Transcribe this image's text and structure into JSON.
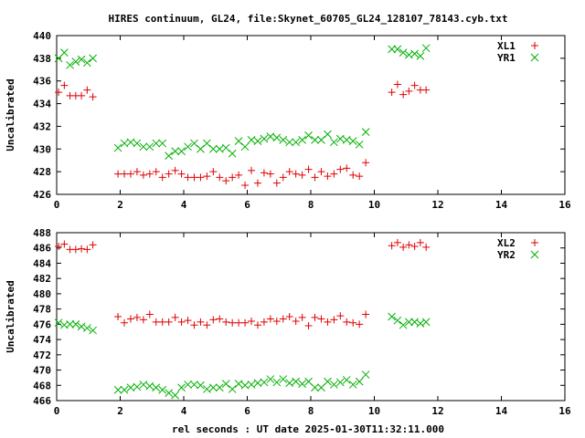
{
  "title": "HIRES continuum, GL24, file:Skynet_60705_GL24_128107_78143.cyb.txt",
  "xlabel": "rel seconds : UT date 2025-01-30T11:32:11.000",
  "colors": {
    "plus": "#e00000",
    "cross": "#00b000",
    "axes": "#000000"
  },
  "chart_data": [
    {
      "type": "scatter",
      "ylabel": "Uncalibrated",
      "xlim": [
        0,
        16
      ],
      "ylim": [
        426,
        440
      ],
      "xticks": [
        "0",
        "2",
        "4",
        "6",
        "8",
        "10",
        "12",
        "14",
        "16"
      ],
      "yticks": [
        "426",
        "428",
        "430",
        "432",
        "434",
        "436",
        "438",
        "440"
      ],
      "legend_position": "top-right",
      "series": [
        {
          "name": "XL1",
          "marker": "plus",
          "points": [
            [
              0.06,
              435.0
            ],
            [
              0.24,
              435.6
            ],
            [
              0.42,
              434.7
            ],
            [
              0.6,
              434.7
            ],
            [
              0.78,
              434.7
            ],
            [
              0.96,
              435.2
            ],
            [
              1.14,
              434.6
            ],
            [
              1.93,
              427.8
            ],
            [
              2.13,
              427.8
            ],
            [
              2.33,
              427.8
            ],
            [
              2.53,
              428.0
            ],
            [
              2.73,
              427.7
            ],
            [
              2.93,
              427.8
            ],
            [
              3.13,
              428.0
            ],
            [
              3.33,
              427.5
            ],
            [
              3.53,
              427.8
            ],
            [
              3.73,
              428.1
            ],
            [
              3.93,
              427.8
            ],
            [
              4.13,
              427.5
            ],
            [
              4.33,
              427.5
            ],
            [
              4.53,
              427.5
            ],
            [
              4.73,
              427.6
            ],
            [
              4.93,
              428.0
            ],
            [
              5.13,
              427.5
            ],
            [
              5.33,
              427.2
            ],
            [
              5.53,
              427.5
            ],
            [
              5.73,
              427.7
            ],
            [
              5.93,
              426.8
            ],
            [
              6.13,
              428.1
            ],
            [
              6.33,
              427.0
            ],
            [
              6.53,
              427.9
            ],
            [
              6.73,
              427.8
            ],
            [
              6.93,
              427.0
            ],
            [
              7.13,
              427.5
            ],
            [
              7.33,
              428.0
            ],
            [
              7.53,
              427.8
            ],
            [
              7.73,
              427.7
            ],
            [
              7.93,
              428.2
            ],
            [
              8.13,
              427.5
            ],
            [
              8.33,
              428.0
            ],
            [
              8.53,
              427.6
            ],
            [
              8.73,
              427.8
            ],
            [
              8.93,
              428.2
            ],
            [
              9.13,
              428.3
            ],
            [
              9.33,
              427.7
            ],
            [
              9.53,
              427.6
            ],
            [
              9.73,
              428.8
            ],
            [
              10.55,
              435.0
            ],
            [
              10.73,
              435.7
            ],
            [
              10.91,
              434.8
            ],
            [
              11.09,
              435.1
            ],
            [
              11.27,
              435.6
            ],
            [
              11.45,
              435.2
            ],
            [
              11.63,
              435.2
            ]
          ]
        },
        {
          "name": "YR1",
          "marker": "cross",
          "points": [
            [
              0.06,
              438.0
            ],
            [
              0.24,
              438.5
            ],
            [
              0.42,
              437.4
            ],
            [
              0.6,
              437.7
            ],
            [
              0.78,
              437.9
            ],
            [
              0.96,
              437.6
            ],
            [
              1.14,
              438.0
            ],
            [
              1.93,
              430.1
            ],
            [
              2.13,
              430.5
            ],
            [
              2.33,
              430.6
            ],
            [
              2.53,
              430.5
            ],
            [
              2.73,
              430.2
            ],
            [
              2.93,
              430.2
            ],
            [
              3.13,
              430.5
            ],
            [
              3.33,
              430.5
            ],
            [
              3.53,
              429.4
            ],
            [
              3.73,
              429.8
            ],
            [
              3.93,
              429.8
            ],
            [
              4.13,
              430.2
            ],
            [
              4.33,
              430.5
            ],
            [
              4.53,
              430.0
            ],
            [
              4.73,
              430.5
            ],
            [
              4.93,
              430.0
            ],
            [
              5.13,
              430.0
            ],
            [
              5.33,
              430.1
            ],
            [
              5.53,
              429.6
            ],
            [
              5.73,
              430.7
            ],
            [
              5.93,
              430.2
            ],
            [
              6.13,
              430.8
            ],
            [
              6.33,
              430.7
            ],
            [
              6.53,
              430.9
            ],
            [
              6.73,
              431.1
            ],
            [
              6.93,
              431.0
            ],
            [
              7.13,
              430.8
            ],
            [
              7.33,
              430.6
            ],
            [
              7.53,
              430.6
            ],
            [
              7.73,
              430.8
            ],
            [
              7.93,
              431.2
            ],
            [
              8.13,
              430.8
            ],
            [
              8.33,
              430.8
            ],
            [
              8.53,
              431.3
            ],
            [
              8.73,
              430.6
            ],
            [
              8.93,
              430.9
            ],
            [
              9.13,
              430.8
            ],
            [
              9.33,
              430.7
            ],
            [
              9.53,
              430.4
            ],
            [
              9.73,
              431.5
            ],
            [
              10.55,
              438.8
            ],
            [
              10.73,
              438.8
            ],
            [
              10.91,
              438.5
            ],
            [
              11.09,
              438.3
            ],
            [
              11.27,
              438.4
            ],
            [
              11.45,
              438.2
            ],
            [
              11.63,
              438.9
            ]
          ]
        }
      ]
    },
    {
      "type": "scatter",
      "ylabel": "Uncalibrated",
      "xlim": [
        0,
        16
      ],
      "ylim": [
        466,
        488
      ],
      "xticks": [
        "0",
        "2",
        "4",
        "6",
        "8",
        "10",
        "12",
        "14",
        "16"
      ],
      "yticks": [
        "466",
        "468",
        "470",
        "472",
        "474",
        "476",
        "478",
        "480",
        "482",
        "484",
        "486",
        "488"
      ],
      "legend_position": "top-right",
      "series": [
        {
          "name": "XL2",
          "marker": "plus",
          "points": [
            [
              0.06,
              486.2
            ],
            [
              0.24,
              486.5
            ],
            [
              0.42,
              485.8
            ],
            [
              0.6,
              485.8
            ],
            [
              0.78,
              485.9
            ],
            [
              0.96,
              485.8
            ],
            [
              1.14,
              486.4
            ],
            [
              1.93,
              477.0
            ],
            [
              2.13,
              476.2
            ],
            [
              2.33,
              476.7
            ],
            [
              2.53,
              476.9
            ],
            [
              2.73,
              476.6
            ],
            [
              2.93,
              477.3
            ],
            [
              3.13,
              476.3
            ],
            [
              3.33,
              476.3
            ],
            [
              3.53,
              476.3
            ],
            [
              3.73,
              476.9
            ],
            [
              3.93,
              476.3
            ],
            [
              4.13,
              476.5
            ],
            [
              4.33,
              475.9
            ],
            [
              4.53,
              476.3
            ],
            [
              4.73,
              475.9
            ],
            [
              4.93,
              476.6
            ],
            [
              5.13,
              476.7
            ],
            [
              5.33,
              476.3
            ],
            [
              5.53,
              476.2
            ],
            [
              5.73,
              476.2
            ],
            [
              5.93,
              476.2
            ],
            [
              6.13,
              476.4
            ],
            [
              6.33,
              475.9
            ],
            [
              6.53,
              476.3
            ],
            [
              6.73,
              476.7
            ],
            [
              6.93,
              476.4
            ],
            [
              7.13,
              476.7
            ],
            [
              7.33,
              477.0
            ],
            [
              7.53,
              476.4
            ],
            [
              7.73,
              476.9
            ],
            [
              7.93,
              475.8
            ],
            [
              8.13,
              476.9
            ],
            [
              8.33,
              476.7
            ],
            [
              8.53,
              476.3
            ],
            [
              8.73,
              476.6
            ],
            [
              8.93,
              477.1
            ],
            [
              9.13,
              476.3
            ],
            [
              9.33,
              476.2
            ],
            [
              9.53,
              476.0
            ],
            [
              9.73,
              477.3
            ],
            [
              10.55,
              486.3
            ],
            [
              10.73,
              486.7
            ],
            [
              10.91,
              486.1
            ],
            [
              11.09,
              486.4
            ],
            [
              11.27,
              486.2
            ],
            [
              11.45,
              486.7
            ],
            [
              11.63,
              486.1
            ]
          ]
        },
        {
          "name": "YR2",
          "marker": "cross",
          "points": [
            [
              0.06,
              476.2
            ],
            [
              0.24,
              475.9
            ],
            [
              0.42,
              476.0
            ],
            [
              0.6,
              476.0
            ],
            [
              0.78,
              475.7
            ],
            [
              0.96,
              475.5
            ],
            [
              1.14,
              475.2
            ],
            [
              1.93,
              467.4
            ],
            [
              2.13,
              467.4
            ],
            [
              2.33,
              467.7
            ],
            [
              2.53,
              467.8
            ],
            [
              2.73,
              468.1
            ],
            [
              2.93,
              467.9
            ],
            [
              3.13,
              467.7
            ],
            [
              3.33,
              467.4
            ],
            [
              3.53,
              467.0
            ],
            [
              3.73,
              466.7
            ],
            [
              3.93,
              467.7
            ],
            [
              4.13,
              468.1
            ],
            [
              4.33,
              468.1
            ],
            [
              4.53,
              468.0
            ],
            [
              4.73,
              467.5
            ],
            [
              4.93,
              467.7
            ],
            [
              5.13,
              467.7
            ],
            [
              5.33,
              468.2
            ],
            [
              5.53,
              467.5
            ],
            [
              5.73,
              468.2
            ],
            [
              5.93,
              468.0
            ],
            [
              6.13,
              468.1
            ],
            [
              6.33,
              468.3
            ],
            [
              6.53,
              468.4
            ],
            [
              6.73,
              468.8
            ],
            [
              6.93,
              468.4
            ],
            [
              7.13,
              468.8
            ],
            [
              7.33,
              468.3
            ],
            [
              7.53,
              468.5
            ],
            [
              7.73,
              468.2
            ],
            [
              7.93,
              468.5
            ],
            [
              8.13,
              467.7
            ],
            [
              8.33,
              467.7
            ],
            [
              8.53,
              468.5
            ],
            [
              8.73,
              468.1
            ],
            [
              8.93,
              468.4
            ],
            [
              9.13,
              468.7
            ],
            [
              9.33,
              468.1
            ],
            [
              9.53,
              468.5
            ],
            [
              9.73,
              469.4
            ],
            [
              10.55,
              477.0
            ],
            [
              10.73,
              476.5
            ],
            [
              10.91,
              475.9
            ],
            [
              11.09,
              476.3
            ],
            [
              11.27,
              476.3
            ],
            [
              11.45,
              476.1
            ],
            [
              11.63,
              476.3
            ]
          ]
        }
      ]
    }
  ]
}
